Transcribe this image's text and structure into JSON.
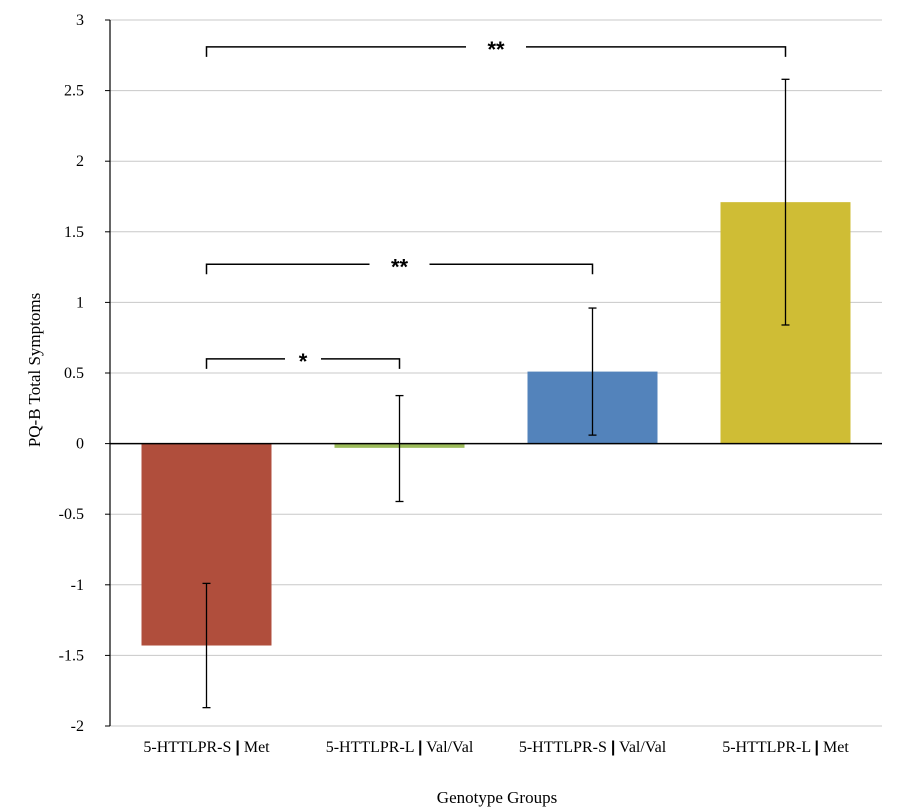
{
  "chart_data": {
    "type": "bar",
    "title": "",
    "xlabel": "Genotype Groups",
    "ylabel": "PQ-B Total Symptoms",
    "ylim": [
      -2,
      3
    ],
    "yticks": [
      3,
      2.5,
      2,
      1.5,
      1,
      0.5,
      0,
      -0.5,
      -1,
      -1.5,
      -2
    ],
    "ytick_labels": [
      "3",
      "2.5",
      "2",
      "1.5",
      "1",
      "0.5",
      "0",
      "-0.5",
      "-1",
      "-1.5",
      "-2"
    ],
    "grid": true,
    "categories": [
      {
        "label": "5-HTTLPR-S",
        "sep": "|",
        "suffix": "Met"
      },
      {
        "label": "5-HTTLPR-L",
        "sep": "|",
        "suffix": "Val/Val"
      },
      {
        "label": "5-HTTLPR-S",
        "sep": "|",
        "suffix": "Val/Val"
      },
      {
        "label": "5-HTTLPR-L",
        "sep": "|",
        "suffix": "Met"
      }
    ],
    "values": [
      -1.43,
      -0.03,
      0.51,
      1.71
    ],
    "error_low": [
      -1.87,
      -0.41,
      0.06,
      0.84
    ],
    "error_high": [
      -0.99,
      0.34,
      0.96,
      2.58
    ],
    "colors": [
      "#b04e3c",
      "#9bbb59",
      "#5383bb",
      "#cfbd35"
    ],
    "significance": [
      {
        "from": 0,
        "to": 1,
        "label": "*",
        "y": 0.6
      },
      {
        "from": 0,
        "to": 2,
        "label": "**",
        "y": 1.27
      },
      {
        "from": 0,
        "to": 3,
        "label": "**",
        "y": 2.81
      }
    ]
  }
}
